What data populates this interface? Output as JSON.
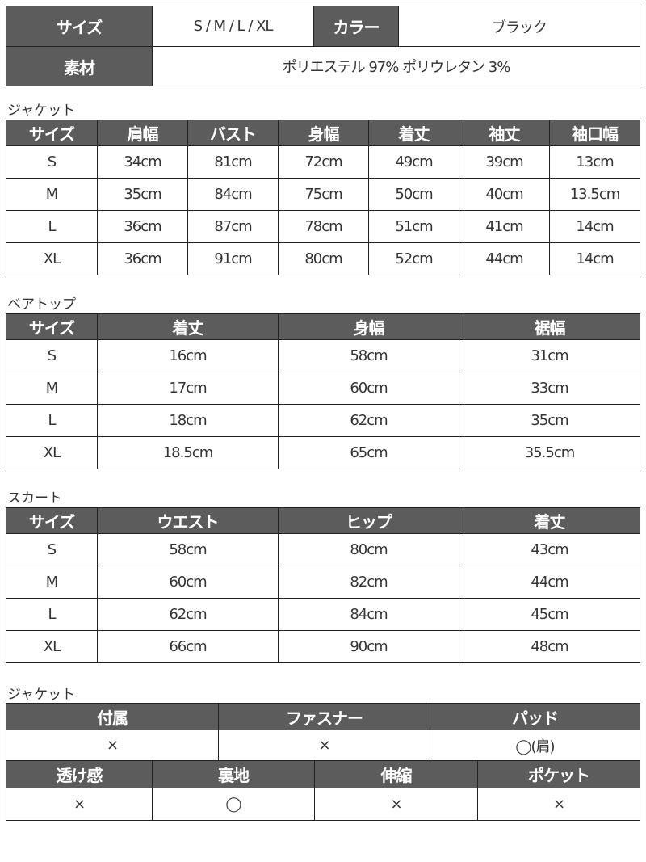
{
  "summary": {
    "size_label": "サイズ",
    "size_value": "S / M / L / XL",
    "color_label": "カラー",
    "color_value": "ブラック",
    "material_label": "素材",
    "material_value": "ポリエステル 97%  ポリウレタン 3%"
  },
  "jacket": {
    "title": "ジャケット",
    "headers": [
      "サイズ",
      "肩幅",
      "バスト",
      "身幅",
      "着丈",
      "袖丈",
      "袖口幅"
    ],
    "rows": [
      [
        "S",
        "34cm",
        "81cm",
        "72cm",
        "49cm",
        "39cm",
        "13cm"
      ],
      [
        "M",
        "35cm",
        "84cm",
        "75cm",
        "50cm",
        "40cm",
        "13.5cm"
      ],
      [
        "L",
        "36cm",
        "87cm",
        "78cm",
        "51cm",
        "41cm",
        "14cm"
      ],
      [
        "XL",
        "36cm",
        "91cm",
        "80cm",
        "52cm",
        "44cm",
        "14cm"
      ]
    ]
  },
  "bare_top": {
    "title": "ベアトップ",
    "headers": [
      "サイズ",
      "着丈",
      "身幅",
      "裾幅"
    ],
    "rows": [
      [
        "S",
        "16cm",
        "58cm",
        "31cm"
      ],
      [
        "M",
        "17cm",
        "60cm",
        "33cm"
      ],
      [
        "L",
        "18cm",
        "62cm",
        "35cm"
      ],
      [
        "XL",
        "18.5cm",
        "65cm",
        "35.5cm"
      ]
    ]
  },
  "skirt": {
    "title": "スカート",
    "headers": [
      "サイズ",
      "ウエスト",
      "ヒップ",
      "着丈"
    ],
    "rows": [
      [
        "S",
        "58cm",
        "80cm",
        "43cm"
      ],
      [
        "M",
        "60cm",
        "82cm",
        "44cm"
      ],
      [
        "L",
        "62cm",
        "84cm",
        "45cm"
      ],
      [
        "XL",
        "66cm",
        "90cm",
        "48cm"
      ]
    ]
  },
  "jacket_features": {
    "title": "ジャケット",
    "row1_headers": [
      "付属",
      "ファスナー",
      "パッド"
    ],
    "row1_values": [
      "×",
      "×",
      "◯(肩)"
    ],
    "row2_headers": [
      "透け感",
      "裏地",
      "伸縮",
      "ポケット"
    ],
    "row2_values": [
      "×",
      "◯",
      "×",
      "×"
    ]
  },
  "colors": {
    "header_bg": "#5c5c5c",
    "border": "#222222"
  }
}
